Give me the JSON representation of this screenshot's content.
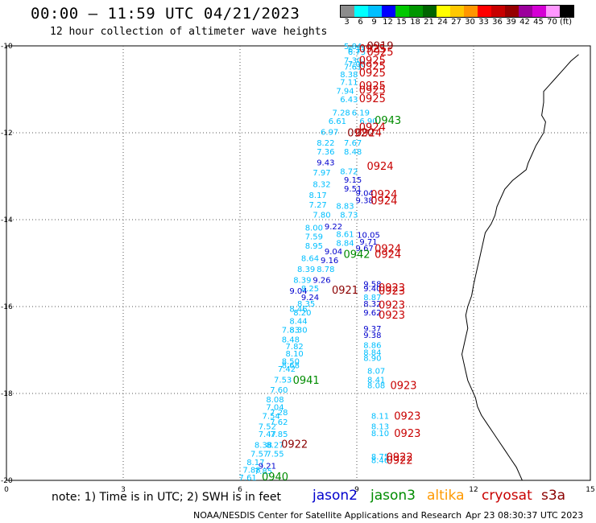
{
  "header": {
    "title": "00:00 – 11:59 UTC 04/21/2023",
    "subtitle": "12 hour collection of altimeter wave heights"
  },
  "colorbar": {
    "colors": [
      "#8c8c8c",
      "#00ffff",
      "#00bfff",
      "#0000ff",
      "#00c800",
      "#009600",
      "#006400",
      "#ffff00",
      "#ffc800",
      "#ff9600",
      "#ff0000",
      "#c80000",
      "#960000",
      "#9b009b",
      "#d400d4",
      "#ff96ff",
      "#000000"
    ],
    "labels": [
      "3",
      "6",
      "9",
      "12",
      "15",
      "18",
      "21",
      "24",
      "27",
      "30",
      "33",
      "36",
      "39",
      "42",
      "45",
      "70",
      "(ft)"
    ]
  },
  "notes": {
    "note_text": "note: 1) Time is in UTC; 2) SWH is in feet",
    "credit": "NOAA/NESDIS Center for Satellite Applications and Research",
    "generated": "Apr 23 08:30:37 UTC 2023"
  },
  "legend": [
    {
      "name": "jason2",
      "color": "#0000cd"
    },
    {
      "name": "jason3",
      "color": "#008c00"
    },
    {
      "name": "altika",
      "color": "#ff9900"
    },
    {
      "name": "cryosat",
      "color": "#c80000"
    },
    {
      "name": "s3a",
      "color": "#8b0000"
    }
  ],
  "chart_data": {
    "type": "scatter",
    "xlim": [
      0,
      15
    ],
    "ylim": [
      -20,
      -10
    ],
    "x_ticks": [
      0,
      3,
      6,
      9,
      12,
      15
    ],
    "y_ticks": [
      -10,
      -12,
      -14,
      -16,
      -18,
      -20
    ],
    "grid": true,
    "labels": [
      {
        "x": 8.9,
        "y": -10.07,
        "text": "5.84",
        "color": "#00bfff"
      },
      {
        "x": 9.0,
        "y": -10.15,
        "text": "6.11",
        "color": "#00bfff"
      },
      {
        "x": 9.0,
        "y": -10.2,
        "text": "6.73",
        "color": "#00bfff"
      },
      {
        "x": 8.9,
        "y": -10.4,
        "text": "7.30",
        "color": "#00bfff"
      },
      {
        "x": 9.0,
        "y": -10.48,
        "text": "7.00",
        "color": "#00bfff"
      },
      {
        "x": 8.9,
        "y": -10.55,
        "text": "7.61",
        "color": "#00bfff"
      },
      {
        "x": 8.8,
        "y": -10.72,
        "text": "8.38",
        "color": "#00bfff"
      },
      {
        "x": 8.8,
        "y": -10.9,
        "text": "7.11",
        "color": "#00bfff"
      },
      {
        "x": 8.7,
        "y": -11.1,
        "text": "7.94",
        "color": "#00bfff"
      },
      {
        "x": 8.8,
        "y": -11.3,
        "text": "6.43",
        "color": "#00bfff"
      },
      {
        "x": 8.6,
        "y": -11.6,
        "text": "7.28",
        "color": "#00bfff"
      },
      {
        "x": 9.1,
        "y": -11.6,
        "text": "6.19",
        "color": "#00bfff"
      },
      {
        "x": 8.5,
        "y": -11.8,
        "text": "6.61",
        "color": "#00bfff"
      },
      {
        "x": 9.3,
        "y": -11.8,
        "text": "6.90",
        "color": "#00bfff"
      },
      {
        "x": 8.3,
        "y": -12.05,
        "text": "6.97",
        "color": "#00bfff"
      },
      {
        "x": 8.2,
        "y": -12.3,
        "text": "8.22",
        "color": "#00bfff"
      },
      {
        "x": 8.9,
        "y": -12.3,
        "text": "7.67",
        "color": "#00bfff"
      },
      {
        "x": 8.2,
        "y": -12.5,
        "text": "7.36",
        "color": "#00bfff"
      },
      {
        "x": 8.9,
        "y": -12.5,
        "text": "8.48",
        "color": "#00bfff"
      },
      {
        "x": 8.2,
        "y": -12.75,
        "text": "9.43",
        "color": "#0000cd"
      },
      {
        "x": 8.1,
        "y": -12.98,
        "text": "7.97",
        "color": "#00bfff"
      },
      {
        "x": 8.8,
        "y": -12.95,
        "text": "8.72",
        "color": "#00bfff"
      },
      {
        "x": 8.9,
        "y": -13.15,
        "text": "9.15",
        "color": "#0000cd"
      },
      {
        "x": 8.1,
        "y": -13.25,
        "text": "8.32",
        "color": "#00bfff"
      },
      {
        "x": 8.9,
        "y": -13.35,
        "text": "9.51",
        "color": "#0000cd"
      },
      {
        "x": 8.0,
        "y": -13.5,
        "text": "8.17",
        "color": "#00bfff"
      },
      {
        "x": 9.2,
        "y": -13.45,
        "text": "9.04",
        "color": "#0000cd"
      },
      {
        "x": 9.2,
        "y": -13.62,
        "text": "9.38",
        "color": "#0000cd"
      },
      {
        "x": 8.0,
        "y": -13.72,
        "text": "7.27",
        "color": "#00bfff"
      },
      {
        "x": 8.7,
        "y": -13.75,
        "text": "8.83",
        "color": "#00bfff"
      },
      {
        "x": 8.1,
        "y": -13.95,
        "text": "7.80",
        "color": "#00bfff"
      },
      {
        "x": 8.8,
        "y": -13.95,
        "text": "8.73",
        "color": "#00bfff"
      },
      {
        "x": 8.4,
        "y": -14.22,
        "text": "9.22",
        "color": "#0000cd"
      },
      {
        "x": 7.9,
        "y": -14.25,
        "text": "8.00",
        "color": "#00bfff"
      },
      {
        "x": 8.7,
        "y": -14.4,
        "text": "8.61",
        "color": "#00bfff"
      },
      {
        "x": 7.9,
        "y": -14.45,
        "text": "7.59",
        "color": "#00bfff"
      },
      {
        "x": 9.3,
        "y": -14.42,
        "text": "10.05",
        "color": "#0000cd"
      },
      {
        "x": 9.3,
        "y": -14.57,
        "text": "9.71",
        "color": "#0000cd"
      },
      {
        "x": 8.7,
        "y": -14.6,
        "text": "8.84",
        "color": "#00bfff"
      },
      {
        "x": 7.9,
        "y": -14.67,
        "text": "8.95",
        "color": "#00bfff"
      },
      {
        "x": 9.2,
        "y": -14.72,
        "text": "9.67",
        "color": "#0000cd"
      },
      {
        "x": 8.4,
        "y": -14.8,
        "text": "9.04",
        "color": "#0000cd"
      },
      {
        "x": 7.8,
        "y": -14.95,
        "text": "8.64",
        "color": "#00bfff"
      },
      {
        "x": 8.3,
        "y": -15.0,
        "text": "9.16",
        "color": "#0000cd"
      },
      {
        "x": 8.2,
        "y": -15.2,
        "text": "8.78",
        "color": "#00bfff"
      },
      {
        "x": 7.7,
        "y": -15.2,
        "text": "8.39",
        "color": "#00bfff"
      },
      {
        "x": 8.1,
        "y": -15.45,
        "text": "9.26",
        "color": "#0000cd"
      },
      {
        "x": 7.6,
        "y": -15.45,
        "text": "8.39",
        "color": "#00bfff"
      },
      {
        "x": 9.4,
        "y": -15.55,
        "text": "9.58",
        "color": "#0000cd"
      },
      {
        "x": 9.4,
        "y": -15.65,
        "text": "9.40",
        "color": "#0000cd"
      },
      {
        "x": 7.5,
        "y": -15.7,
        "text": "9.04",
        "color": "#0000cd"
      },
      {
        "x": 7.8,
        "y": -15.65,
        "text": "8.25",
        "color": "#00bfff"
      },
      {
        "x": 7.8,
        "y": -15.85,
        "text": "9.24",
        "color": "#0000cd"
      },
      {
        "x": 9.4,
        "y": -15.85,
        "text": "8.87",
        "color": "#00bfff"
      },
      {
        "x": 7.7,
        "y": -16.0,
        "text": "8.35",
        "color": "#00bfff"
      },
      {
        "x": 9.4,
        "y": -16.0,
        "text": "8.32",
        "color": "#0000cd"
      },
      {
        "x": 7.5,
        "y": -16.12,
        "text": "8.46",
        "color": "#00bfff"
      },
      {
        "x": 7.6,
        "y": -16.2,
        "text": "8.20",
        "color": "#00bfff"
      },
      {
        "x": 9.4,
        "y": -16.2,
        "text": "9.62",
        "color": "#0000cd"
      },
      {
        "x": 7.5,
        "y": -16.4,
        "text": "8.44",
        "color": "#00bfff"
      },
      {
        "x": 7.3,
        "y": -16.6,
        "text": "7.83",
        "color": "#00bfff"
      },
      {
        "x": 7.5,
        "y": -16.6,
        "text": "8.30",
        "color": "#00bfff"
      },
      {
        "x": 9.4,
        "y": -16.57,
        "text": "9.37",
        "color": "#0000cd"
      },
      {
        "x": 9.4,
        "y": -16.72,
        "text": "9.38",
        "color": "#0000cd"
      },
      {
        "x": 7.3,
        "y": -16.82,
        "text": "8.48",
        "color": "#00bfff"
      },
      {
        "x": 7.4,
        "y": -16.98,
        "text": "7.82",
        "color": "#00bfff"
      },
      {
        "x": 9.4,
        "y": -16.95,
        "text": "8.86",
        "color": "#00bfff"
      },
      {
        "x": 9.4,
        "y": -17.12,
        "text": "8.84",
        "color": "#00bfff"
      },
      {
        "x": 7.4,
        "y": -17.15,
        "text": "8.10",
        "color": "#00bfff"
      },
      {
        "x": 9.4,
        "y": -17.25,
        "text": "8.90",
        "color": "#00bfff"
      },
      {
        "x": 7.3,
        "y": -17.32,
        "text": "8.50",
        "color": "#00bfff"
      },
      {
        "x": 7.2,
        "y": -17.5,
        "text": "7.42",
        "color": "#00bfff"
      },
      {
        "x": 7.3,
        "y": -17.42,
        "text": "8.68",
        "color": "#00bfff"
      },
      {
        "x": 9.5,
        "y": -17.55,
        "text": "8.07",
        "color": "#00bfff"
      },
      {
        "x": 7.1,
        "y": -17.75,
        "text": "7.53",
        "color": "#00bfff"
      },
      {
        "x": 9.5,
        "y": -17.75,
        "text": "8.41",
        "color": "#00bfff"
      },
      {
        "x": 9.5,
        "y": -17.88,
        "text": "8.08",
        "color": "#00bfff"
      },
      {
        "x": 7.0,
        "y": -17.98,
        "text": "7.60",
        "color": "#00bfff"
      },
      {
        "x": 6.9,
        "y": -18.2,
        "text": "8.08",
        "color": "#00bfff"
      },
      {
        "x": 6.9,
        "y": -18.38,
        "text": "7.04",
        "color": "#00bfff"
      },
      {
        "x": 6.8,
        "y": -18.58,
        "text": "7.54",
        "color": "#00bfff"
      },
      {
        "x": 7.0,
        "y": -18.5,
        "text": "7.28",
        "color": "#00bfff"
      },
      {
        "x": 9.6,
        "y": -18.58,
        "text": "8.11",
        "color": "#00bfff"
      },
      {
        "x": 6.7,
        "y": -18.82,
        "text": "7.52",
        "color": "#00bfff"
      },
      {
        "x": 7.0,
        "y": -18.72,
        "text": "7.62",
        "color": "#00bfff"
      },
      {
        "x": 9.6,
        "y": -18.82,
        "text": "8.13",
        "color": "#00bfff"
      },
      {
        "x": 6.7,
        "y": -19.0,
        "text": "7.47",
        "color": "#00bfff"
      },
      {
        "x": 7.0,
        "y": -19.0,
        "text": "7.85",
        "color": "#00bfff"
      },
      {
        "x": 9.6,
        "y": -18.98,
        "text": "8.10",
        "color": "#00bfff"
      },
      {
        "x": 6.6,
        "y": -19.25,
        "text": "8.38",
        "color": "#00bfff"
      },
      {
        "x": 6.9,
        "y": -19.25,
        "text": "8.27",
        "color": "#00bfff"
      },
      {
        "x": 6.5,
        "y": -19.45,
        "text": "7.57",
        "color": "#00bfff"
      },
      {
        "x": 6.9,
        "y": -19.45,
        "text": "7.55",
        "color": "#00bfff"
      },
      {
        "x": 9.6,
        "y": -19.52,
        "text": "8.75",
        "color": "#00bfff"
      },
      {
        "x": 9.6,
        "y": -19.6,
        "text": "8.46",
        "color": "#00bfff"
      },
      {
        "x": 6.4,
        "y": -19.65,
        "text": "8.17",
        "color": "#00bfff"
      },
      {
        "x": 6.7,
        "y": -19.73,
        "text": "9.21",
        "color": "#0000cd"
      },
      {
        "x": 6.3,
        "y": -19.82,
        "text": "7.88",
        "color": "#00bfff"
      },
      {
        "x": 6.2,
        "y": -20.0,
        "text": "7.61",
        "color": "#00bfff"
      },
      {
        "x": 6.6,
        "y": -19.85,
        "text": "7.85",
        "color": "#00bfff"
      },
      {
        "x": 9.6,
        "y": -10.08,
        "text": "0919",
        "color": "#8b0000"
      },
      {
        "x": 9.4,
        "y": -10.15,
        "text": "0925",
        "color": "#c80000"
      },
      {
        "x": 9.6,
        "y": -10.22,
        "text": "0925",
        "color": "#c80000"
      },
      {
        "x": 9.4,
        "y": -10.42,
        "text": "0925",
        "color": "#c80000"
      },
      {
        "x": 9.4,
        "y": -10.55,
        "text": "0925",
        "color": "#c80000"
      },
      {
        "x": 9.4,
        "y": -10.7,
        "text": "0925",
        "color": "#c80000"
      },
      {
        "x": 9.4,
        "y": -11.0,
        "text": "0925",
        "color": "#c80000"
      },
      {
        "x": 9.4,
        "y": -11.1,
        "text": "0925",
        "color": "#c80000"
      },
      {
        "x": 9.4,
        "y": -11.3,
        "text": "0925",
        "color": "#c80000"
      },
      {
        "x": 9.8,
        "y": -11.8,
        "text": "0943",
        "color": "#008c00"
      },
      {
        "x": 9.4,
        "y": -11.95,
        "text": "0924",
        "color": "#c80000"
      },
      {
        "x": 9.1,
        "y": -12.08,
        "text": "0920",
        "color": "#8b0000"
      },
      {
        "x": 9.3,
        "y": -12.08,
        "text": "0924",
        "color": "#c80000"
      },
      {
        "x": 9.6,
        "y": -12.85,
        "text": "0924",
        "color": "#c80000"
      },
      {
        "x": 9.7,
        "y": -13.5,
        "text": "0924",
        "color": "#c80000"
      },
      {
        "x": 9.7,
        "y": -13.65,
        "text": "0924",
        "color": "#c80000"
      },
      {
        "x": 9.8,
        "y": -14.75,
        "text": "0924",
        "color": "#c80000"
      },
      {
        "x": 9.8,
        "y": -14.88,
        "text": "0924",
        "color": "#c80000"
      },
      {
        "x": 9.0,
        "y": -14.88,
        "text": "0942",
        "color": "#008c00"
      },
      {
        "x": 8.7,
        "y": -15.7,
        "text": "0921",
        "color": "#8b0000"
      },
      {
        "x": 9.9,
        "y": -15.65,
        "text": "0923",
        "color": "#c80000"
      },
      {
        "x": 9.9,
        "y": -15.72,
        "text": "0923",
        "color": "#c80000"
      },
      {
        "x": 9.9,
        "y": -16.05,
        "text": "0923",
        "color": "#c80000"
      },
      {
        "x": 9.9,
        "y": -16.28,
        "text": "0923",
        "color": "#c80000"
      },
      {
        "x": 7.7,
        "y": -17.78,
        "text": "0941",
        "color": "#008c00"
      },
      {
        "x": 10.2,
        "y": -17.9,
        "text": "0923",
        "color": "#c80000"
      },
      {
        "x": 10.3,
        "y": -18.6,
        "text": "0923",
        "color": "#c80000"
      },
      {
        "x": 10.3,
        "y": -19.0,
        "text": "0923",
        "color": "#c80000"
      },
      {
        "x": 7.4,
        "y": -19.25,
        "text": "0922",
        "color": "#8b0000"
      },
      {
        "x": 10.1,
        "y": -19.55,
        "text": "0922",
        "color": "#c80000"
      },
      {
        "x": 10.1,
        "y": -19.62,
        "text": "0922",
        "color": "#c80000"
      },
      {
        "x": 6.9,
        "y": -20.0,
        "text": "0940",
        "color": "#008c00"
      }
    ],
    "coastline": [
      [
        14.7,
        -10.2
      ],
      [
        14.5,
        -10.35
      ],
      [
        14.3,
        -10.55
      ],
      [
        14.1,
        -10.75
      ],
      [
        13.95,
        -10.9
      ],
      [
        13.8,
        -11.05
      ],
      [
        13.8,
        -11.3
      ],
      [
        13.75,
        -11.6
      ],
      [
        13.85,
        -11.75
      ],
      [
        13.8,
        -12.0
      ],
      [
        13.6,
        -12.3
      ],
      [
        13.5,
        -12.5
      ],
      [
        13.4,
        -12.7
      ],
      [
        13.35,
        -12.85
      ],
      [
        13.0,
        -13.1
      ],
      [
        12.8,
        -13.3
      ],
      [
        12.7,
        -13.5
      ],
      [
        12.6,
        -13.7
      ],
      [
        12.55,
        -13.9
      ],
      [
        12.45,
        -14.1
      ],
      [
        12.3,
        -14.3
      ],
      [
        12.25,
        -14.5
      ],
      [
        12.2,
        -14.7
      ],
      [
        12.15,
        -14.9
      ],
      [
        12.1,
        -15.1
      ],
      [
        12.05,
        -15.3
      ],
      [
        12.0,
        -15.5
      ],
      [
        11.95,
        -15.75
      ],
      [
        11.85,
        -16.0
      ],
      [
        11.8,
        -16.2
      ],
      [
        11.85,
        -16.5
      ],
      [
        11.8,
        -16.7
      ],
      [
        11.75,
        -16.9
      ],
      [
        11.7,
        -17.1
      ],
      [
        11.75,
        -17.3
      ],
      [
        11.8,
        -17.5
      ],
      [
        11.85,
        -17.7
      ],
      [
        11.95,
        -17.9
      ],
      [
        12.05,
        -18.1
      ],
      [
        12.1,
        -18.3
      ],
      [
        12.2,
        -18.5
      ],
      [
        12.35,
        -18.7
      ],
      [
        12.5,
        -18.9
      ],
      [
        12.65,
        -19.1
      ],
      [
        12.8,
        -19.3
      ],
      [
        12.95,
        -19.5
      ],
      [
        13.1,
        -19.7
      ],
      [
        13.2,
        -19.9
      ],
      [
        13.25,
        -20.0
      ]
    ]
  }
}
